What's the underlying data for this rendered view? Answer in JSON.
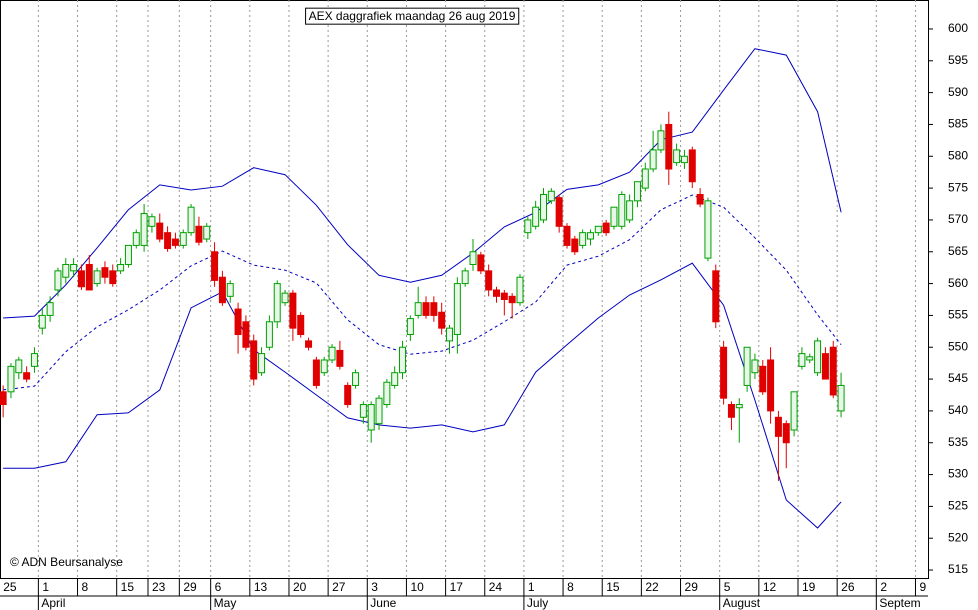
{
  "chart_data": {
    "type": "candlestick",
    "title": "AEX daggrafiek maandag 26 aug 2019",
    "footer": "© ADN Beursanalyse",
    "up_color": "#00a000",
    "down_color": "#e00000",
    "open": [
      543,
      543,
      546,
      546,
      547,
      553,
      555,
      559,
      561,
      562,
      562,
      563,
      560,
      562.5,
      562,
      562,
      563,
      566,
      566,
      569,
      569.5,
      568,
      567,
      566,
      568,
      569,
      567,
      565,
      561,
      558,
      556,
      554,
      551,
      546,
      550,
      554,
      557,
      558.5,
      555,
      551,
      548,
      546,
      548,
      549.5,
      544,
      544,
      539,
      537,
      538,
      541,
      544,
      546,
      552,
      555,
      557,
      557,
      555.5,
      551,
      552,
      560,
      563,
      564.5,
      562,
      559,
      558.5,
      558,
      557,
      568,
      569,
      570,
      573,
      573.5,
      569,
      567,
      566,
      567,
      568,
      569.5,
      569,
      569,
      570,
      573,
      575,
      578,
      581,
      585,
      579,
      579,
      581,
      574,
      564,
      562,
      550,
      541,
      540.5,
      544,
      546,
      547,
      548,
      539,
      538,
      537,
      547,
      548,
      546,
      549,
      550,
      540
    ],
    "high": [
      544,
      547.5,
      548.5,
      547,
      550,
      556,
      558,
      562.5,
      564,
      564,
      563,
      564.5,
      562.5,
      563.5,
      563,
      564,
      566,
      568.5,
      572.5,
      571,
      571,
      569,
      568,
      568.5,
      572.5,
      570.5,
      569.5,
      566.5,
      562,
      560.5,
      557,
      555,
      552,
      550,
      555,
      560.5,
      559,
      559,
      555.5,
      551.5,
      548.5,
      548.5,
      550.5,
      551,
      544.5,
      546.5,
      541.5,
      541.5,
      542.5,
      545,
      547,
      551,
      555,
      559.5,
      558,
      558,
      557,
      553.5,
      561,
      562.5,
      567,
      565,
      563,
      559.5,
      559,
      558.5,
      561.5,
      570.5,
      573,
      575,
      575,
      574,
      569.5,
      567.5,
      568.5,
      568.5,
      569,
      570,
      572,
      574.5,
      574,
      576,
      579,
      584,
      585,
      587,
      582,
      581,
      581.5,
      575,
      573.5,
      563,
      551,
      541.5,
      542,
      550,
      549,
      548,
      550,
      540,
      538.5,
      543,
      550,
      549,
      551.5,
      550,
      551,
      546
    ],
    "low": [
      539,
      542,
      545,
      544.5,
      546,
      552,
      554,
      558,
      560,
      561,
      559,
      559,
      559.5,
      560,
      559.5,
      561.5,
      562.5,
      565.5,
      565,
      568,
      566.5,
      565,
      565.5,
      565.5,
      567.5,
      566,
      566.5,
      559.5,
      556.5,
      557,
      549,
      549.5,
      544,
      545.5,
      549.5,
      553,
      556.5,
      551,
      551.5,
      549.5,
      543.5,
      545.5,
      547.5,
      546.5,
      540.5,
      543.5,
      538,
      535,
      537,
      540.5,
      543.5,
      545,
      551,
      554.5,
      554.5,
      554,
      552,
      549,
      549,
      559.5,
      562,
      561.5,
      558,
      557,
      555,
      554.5,
      556.5,
      567,
      568.5,
      569.5,
      572.5,
      568,
      565.5,
      564.5,
      565.5,
      566,
      567.5,
      567.5,
      568.5,
      568.5,
      569.5,
      572,
      574.5,
      577.5,
      580.5,
      575.5,
      578.5,
      578,
      575,
      572,
      563.5,
      553,
      541,
      537,
      535,
      543,
      545,
      542.5,
      538,
      529,
      531,
      536,
      546.5,
      547.5,
      545.5,
      545,
      542,
      539
    ],
    "close": [
      541,
      547,
      548,
      545,
      549,
      555,
      557,
      562,
      563,
      563,
      559.5,
      559,
      562,
      561,
      560,
      563,
      566,
      568,
      571,
      570.5,
      567,
      565.5,
      566,
      568,
      572,
      566.5,
      569,
      560.5,
      557,
      560,
      552,
      550,
      545,
      549,
      554,
      560,
      558.5,
      553,
      552,
      550,
      544,
      548,
      550,
      547,
      541,
      546,
      541,
      541,
      542,
      544.5,
      546,
      550,
      554.5,
      557,
      555,
      555,
      553,
      553,
      560,
      562,
      565,
      562,
      559,
      558,
      557.5,
      557,
      561,
      570,
      572,
      574,
      574.5,
      569,
      566,
      565,
      568,
      568,
      569,
      568,
      572,
      574,
      573,
      576,
      578,
      581,
      584,
      578,
      581,
      580,
      576,
      572.5,
      573,
      554,
      542,
      539,
      541,
      550,
      548,
      543,
      540,
      536,
      535,
      543,
      549,
      548.5,
      551,
      545,
      542.5,
      544
    ],
    "band_x": [
      0,
      4,
      8,
      12,
      16,
      20,
      24,
      28,
      32,
      36,
      40,
      44,
      48,
      52,
      56,
      60,
      64,
      68,
      72,
      76,
      80,
      84,
      88,
      92,
      96,
      100,
      104,
      107
    ],
    "bands": [
      {
        "color": "#0000c0",
        "style": "solid",
        "values": [
          554.6,
          554.9,
          559.8,
          565.6,
          571.6,
          575.5,
          574.7,
          575.3,
          578.2,
          577.1,
          572.3,
          566.1,
          561.3,
          560.2,
          561.3,
          564.8,
          568.9,
          571.2,
          574.8,
          575.5,
          577.5,
          582.6,
          583.8,
          590.4,
          596.9,
          595.9,
          587.0,
          571.2
        ]
      },
      {
        "color": "#0000c0",
        "style": "dashed",
        "values": [
          543.3,
          543.9,
          549.3,
          553.2,
          555.9,
          559.0,
          562.8,
          565.1,
          562.9,
          562.1,
          560.1,
          554.3,
          550.4,
          548.9,
          549.4,
          551.1,
          554.0,
          557.1,
          562.9,
          564.3,
          566.9,
          571.6,
          573.9,
          572.0,
          567.2,
          562.1,
          555.1,
          550.4
        ]
      },
      {
        "color": "#0000c0",
        "style": "solid",
        "values": [
          531.0,
          531.0,
          532.0,
          539.4,
          539.7,
          543.3,
          556.2,
          558.7,
          549.6,
          546.1,
          542.5,
          538.9,
          537.8,
          537.3,
          537.8,
          536.7,
          537.8,
          546.1,
          550.4,
          554.6,
          558.2,
          560.6,
          563.2,
          556.6,
          541.7,
          526.0,
          521.6,
          525.7
        ]
      }
    ],
    "xlim": [
      -0.4,
      118.1
    ],
    "xticks": [
      {
        "value": 0,
        "label": "25"
      },
      {
        "value": 5,
        "label": "1"
      },
      {
        "value": 10,
        "label": "8"
      },
      {
        "value": 15,
        "label": "15"
      },
      {
        "value": 19,
        "label": "23"
      },
      {
        "value": 23,
        "label": "29"
      },
      {
        "value": 27,
        "label": "6"
      },
      {
        "value": 32,
        "label": "13"
      },
      {
        "value": 37,
        "label": "20"
      },
      {
        "value": 42,
        "label": "27"
      },
      {
        "value": 47,
        "label": "3"
      },
      {
        "value": 52,
        "label": "10"
      },
      {
        "value": 57,
        "label": "17"
      },
      {
        "value": 62,
        "label": "24"
      },
      {
        "value": 67,
        "label": "1"
      },
      {
        "value": 72,
        "label": "8"
      },
      {
        "value": 77,
        "label": "15"
      },
      {
        "value": 82,
        "label": "22"
      },
      {
        "value": 87,
        "label": "29"
      },
      {
        "value": 92,
        "label": "5"
      },
      {
        "value": 97,
        "label": "12"
      },
      {
        "value": 102,
        "label": "19"
      },
      {
        "value": 107,
        "label": "26"
      },
      {
        "value": 112,
        "label": "2"
      },
      {
        "value": 117,
        "label": "9"
      }
    ],
    "month_ticks": [
      {
        "value": 5,
        "label": "April"
      },
      {
        "value": 27,
        "label": "May"
      },
      {
        "value": 47,
        "label": "June"
      },
      {
        "value": 67,
        "label": "July"
      },
      {
        "value": 92,
        "label": "August"
      },
      {
        "value": 112,
        "label": "Septem"
      }
    ],
    "ylim": [
      513.75,
      604.55
    ],
    "yticks": [
      515,
      520,
      525,
      530,
      535,
      540,
      545,
      550,
      555,
      560,
      565,
      570,
      575,
      580,
      585,
      590,
      595,
      600
    ],
    "grid": "x"
  }
}
